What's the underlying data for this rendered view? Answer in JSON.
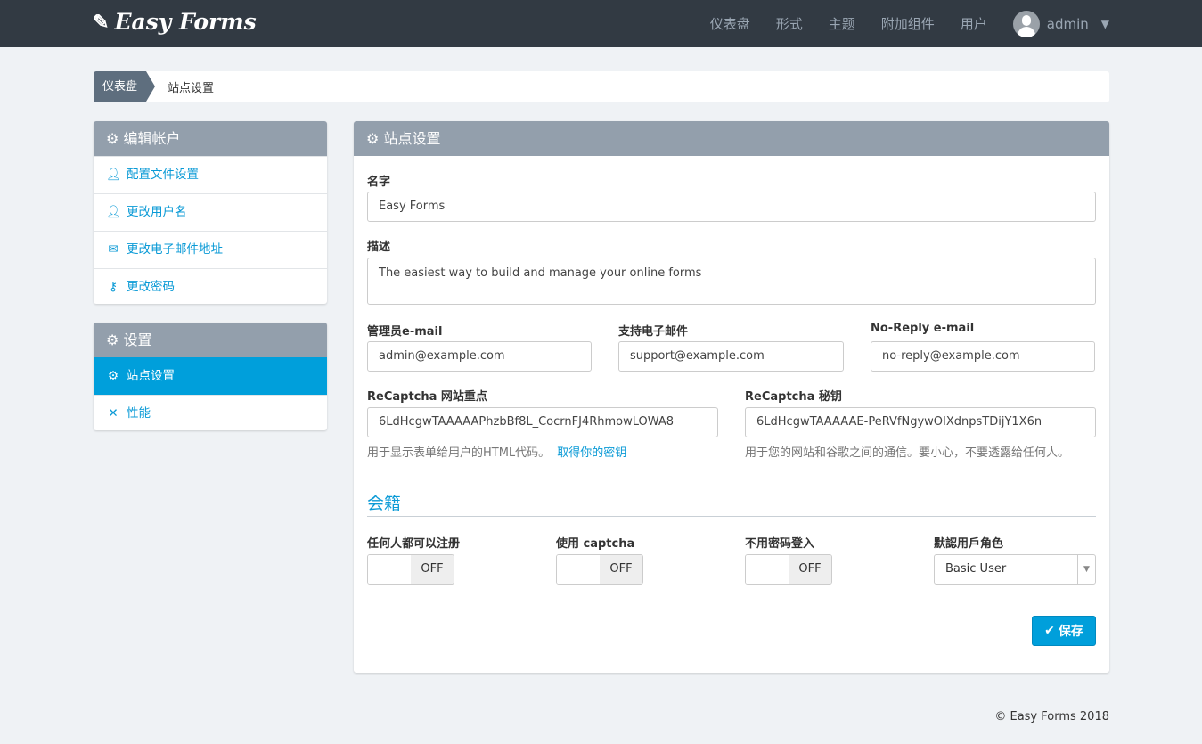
{
  "nav": {
    "brand": "Easy Forms",
    "items": [
      "仪表盘",
      "形式",
      "主题",
      "附加组件",
      "用户"
    ],
    "user": "admin"
  },
  "breadcrumb": {
    "home": "仪表盘",
    "current": "站点设置"
  },
  "sidebar": {
    "account": {
      "title": "编辑帐户",
      "items": [
        {
          "label": "配置文件设置",
          "icon": "user-icon"
        },
        {
          "label": "更改用户名",
          "icon": "user-edit-icon"
        },
        {
          "label": "更改电子邮件地址",
          "icon": "envelope-icon"
        },
        {
          "label": "更改密码",
          "icon": "key-icon"
        }
      ]
    },
    "settings": {
      "title": "设置",
      "items": [
        {
          "label": "站点设置",
          "icon": "gears-icon",
          "active": true
        },
        {
          "label": "性能",
          "icon": "wrench-icon"
        }
      ]
    }
  },
  "main": {
    "title": "站点设置",
    "name_label": "名字",
    "name_value": "Easy Forms",
    "desc_label": "描述",
    "desc_value": "The easiest way to build and manage your online forms",
    "admin_email_label": "管理员e-mail",
    "admin_email": "admin@example.com",
    "support_email_label": "支持电子邮件",
    "support_email": "support@example.com",
    "noreply_email_label": "No-Reply e-mail",
    "noreply_email": "no-reply@example.com",
    "site_key_label": "ReCaptcha 网站重点",
    "site_key": "6LdHcgwTAAAAAPhzbBf8L_CocrnFJ4RhmowLOWA8",
    "site_key_help": "用于显示表单给用户的HTML代码。",
    "site_key_link": "取得你的密钥",
    "secret_label": "ReCaptcha 秘钥",
    "secret": "6LdHcgwTAAAAAE-PeRVfNgywOIXdnpsTDijY1X6n",
    "secret_help": "用于您的网站和谷歌之间的通信。要小心，不要透露给任何人。",
    "membership": "会籍",
    "toggles": [
      {
        "label": "任何人都可以注册",
        "state": "OFF"
      },
      {
        "label": "使用 captcha",
        "state": "OFF"
      },
      {
        "label": "不用密码登入",
        "state": "OFF"
      }
    ],
    "role_label": "默認用戶角色",
    "role_value": "Basic User",
    "save": "保存"
  },
  "footer": "© Easy Forms 2018",
  "colors": {
    "navbar": "#323a43",
    "accent": "#009fdb",
    "panel_header": "#939fac"
  }
}
